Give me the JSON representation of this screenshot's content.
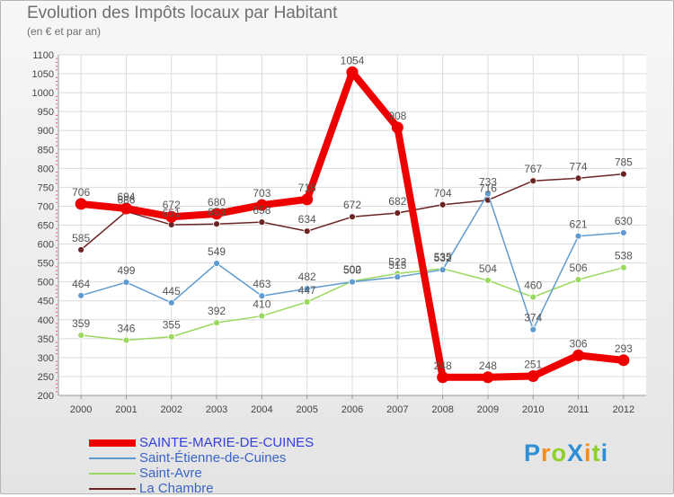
{
  "title": "Evolution des Impôts locaux par Habitant",
  "subtitle": "(en € et par an)",
  "logo": {
    "text": "ProXiti",
    "letter_colors": [
      "#2f8fd6",
      "#f08c1a",
      "#8fcf2a",
      "#2f8fd6",
      "#f08c1a",
      "#8fcf2a",
      "#2f8fd6"
    ]
  },
  "chart_data": {
    "type": "line",
    "title": "Evolution des Impôts locaux par Habitant",
    "subtitle": "(en € et par an)",
    "xlabel": "",
    "ylabel": "",
    "x": [
      "2000",
      "2001",
      "2002",
      "2003",
      "2004",
      "2005",
      "2006",
      "2007",
      "2008",
      "2009",
      "2010",
      "2011",
      "2012"
    ],
    "ylim": [
      200,
      1100
    ],
    "yticks": [
      200,
      250,
      300,
      350,
      400,
      450,
      500,
      550,
      600,
      650,
      700,
      750,
      800,
      850,
      900,
      950,
      1000,
      1050,
      1100
    ],
    "grid": true,
    "legend_position": "bottom-left",
    "series": [
      {
        "name": "SAINTE-MARIE-DE-CUINES",
        "color": "#ee0000",
        "emphasis": true,
        "values": [
          706,
          694,
          672,
          680,
          703,
          718,
          1054,
          908,
          248,
          248,
          251,
          306,
          293
        ]
      },
      {
        "name": "Saint-Étienne-de-Cuines",
        "color": "#5f9bd0",
        "emphasis": false,
        "values": [
          464,
          499,
          445,
          549,
          463,
          482,
          500,
          513,
          532,
          733,
          374,
          621,
          630
        ]
      },
      {
        "name": "Saint-Avre",
        "color": "#9bd85f",
        "emphasis": false,
        "values": [
          359,
          346,
          355,
          392,
          410,
          447,
          502,
          522,
          535,
          504,
          460,
          506,
          538
        ]
      },
      {
        "name": "La Chambre",
        "color": "#6b2424",
        "emphasis": false,
        "values": [
          585,
          686,
          651,
          653,
          658,
          634,
          672,
          682,
          704,
          716,
          767,
          774,
          785
        ]
      }
    ],
    "data_labels": [
      [
        "706",
        "694",
        "672",
        "680",
        "703",
        "718",
        "1054",
        "908",
        "248",
        "248",
        "251",
        "306",
        "293"
      ],
      [
        "464",
        "499",
        "445",
        "549",
        "463",
        "482",
        "500",
        "513",
        "532",
        "733",
        "374",
        "621",
        "630"
      ],
      [
        "359",
        "346",
        "355",
        "392",
        "410",
        "447",
        "502",
        "522",
        "535",
        "504",
        "460",
        "506",
        "538"
      ],
      [
        "585",
        "686",
        "651",
        "653",
        "658",
        "634",
        "672",
        "682",
        "704",
        "716",
        "767",
        "774",
        "785"
      ]
    ]
  }
}
